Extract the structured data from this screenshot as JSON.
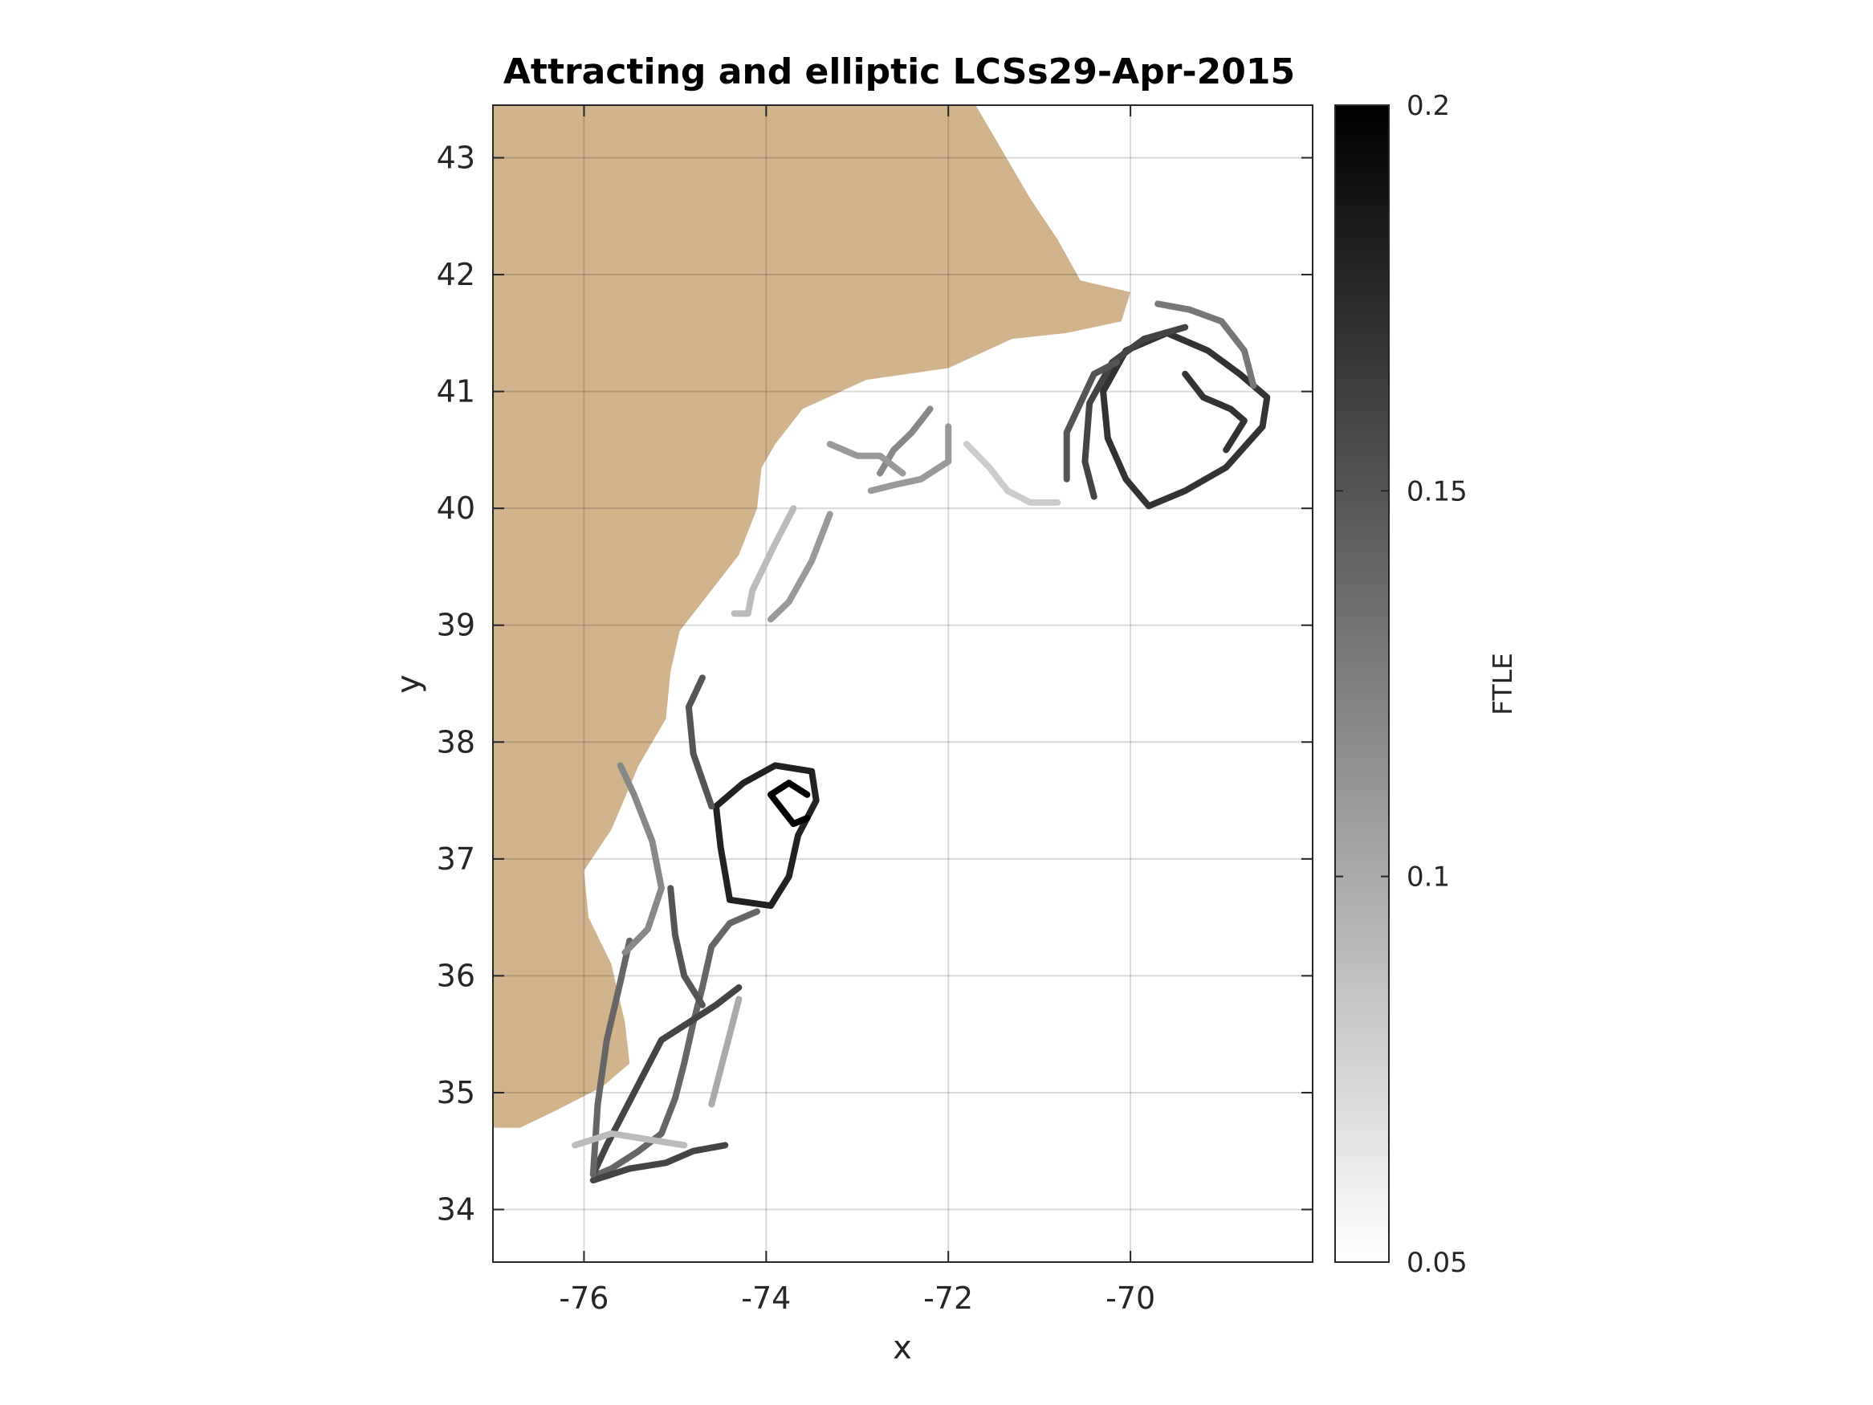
{
  "chart_data": {
    "type": "heatmap",
    "title": "Attracting and elliptic LCSs29-Apr-2015",
    "xlabel": "x",
    "ylabel": "y",
    "xlim": [
      -77.0,
      -68.0
    ],
    "ylim": [
      33.55,
      43.45
    ],
    "xticks": [
      -76,
      -74,
      -72,
      -70
    ],
    "xtick_labels": [
      "-76",
      "-74",
      "-72",
      "-70"
    ],
    "yticks": [
      34,
      35,
      36,
      37,
      38,
      39,
      40,
      41,
      42,
      43
    ],
    "ytick_labels": [
      "34",
      "35",
      "36",
      "37",
      "38",
      "39",
      "40",
      "41",
      "42",
      "43"
    ],
    "grid": true,
    "colorbar": {
      "label": "FTLE",
      "colormap": "gray-reversed",
      "clim": [
        0.05,
        0.2
      ],
      "ticks": [
        0.05,
        0.1,
        0.15,
        0.2
      ],
      "tick_labels": [
        "0.05",
        "0.1",
        "0.15",
        "0.2"
      ]
    },
    "land_color": "#d2b48c",
    "coastline": [
      [
        -77.0,
        43.45
      ],
      [
        -71.7,
        43.45
      ],
      [
        -71.1,
        42.65
      ],
      [
        -70.8,
        42.3
      ],
      [
        -70.55,
        41.95
      ],
      [
        -70.0,
        41.85
      ],
      [
        -70.1,
        41.6
      ],
      [
        -70.7,
        41.5
      ],
      [
        -71.3,
        41.45
      ],
      [
        -72.0,
        41.2
      ],
      [
        -72.9,
        41.1
      ],
      [
        -73.6,
        40.85
      ],
      [
        -73.9,
        40.55
      ],
      [
        -74.05,
        40.35
      ],
      [
        -74.1,
        40.0
      ],
      [
        -74.3,
        39.6
      ],
      [
        -74.6,
        39.3
      ],
      [
        -74.95,
        38.95
      ],
      [
        -75.05,
        38.6
      ],
      [
        -75.1,
        38.2
      ],
      [
        -75.4,
        37.8
      ],
      [
        -75.7,
        37.25
      ],
      [
        -76.0,
        36.9
      ],
      [
        -75.95,
        36.5
      ],
      [
        -75.7,
        36.1
      ],
      [
        -75.55,
        35.6
      ],
      [
        -75.5,
        35.25
      ],
      [
        -75.8,
        35.05
      ],
      [
        -76.3,
        34.85
      ],
      [
        -76.7,
        34.7
      ],
      [
        -77.0,
        34.7
      ]
    ],
    "series": [
      {
        "ftle": 0.17,
        "points": [
          [
            -69.8,
            40.02
          ],
          [
            -70.05,
            40.25
          ],
          [
            -70.25,
            40.6
          ],
          [
            -70.3,
            41.0
          ],
          [
            -70.05,
            41.35
          ],
          [
            -69.6,
            41.5
          ],
          [
            -69.15,
            41.35
          ],
          [
            -68.8,
            41.15
          ],
          [
            -68.5,
            40.95
          ],
          [
            -68.55,
            40.7
          ],
          [
            -68.95,
            40.35
          ],
          [
            -69.4,
            40.15
          ],
          [
            -69.8,
            40.02
          ]
        ]
      },
      {
        "ftle": 0.16,
        "points": [
          [
            -70.4,
            40.1
          ],
          [
            -70.5,
            40.4
          ],
          [
            -70.45,
            40.9
          ],
          [
            -70.2,
            41.25
          ],
          [
            -69.85,
            41.45
          ],
          [
            -69.4,
            41.55
          ]
        ]
      },
      {
        "ftle": 0.15,
        "points": [
          [
            -70.7,
            40.25
          ],
          [
            -70.7,
            40.65
          ],
          [
            -70.55,
            40.9
          ],
          [
            -70.4,
            41.15
          ],
          [
            -70.15,
            41.25
          ]
        ]
      },
      {
        "ftle": 0.17,
        "points": [
          [
            -69.4,
            41.15
          ],
          [
            -69.2,
            40.95
          ],
          [
            -68.9,
            40.85
          ],
          [
            -68.75,
            40.75
          ],
          [
            -68.95,
            40.5
          ]
        ]
      },
      {
        "ftle": 0.13,
        "points": [
          [
            -69.7,
            41.75
          ],
          [
            -69.35,
            41.7
          ],
          [
            -69.0,
            41.6
          ],
          [
            -68.75,
            41.35
          ],
          [
            -68.65,
            41.05
          ]
        ]
      },
      {
        "ftle": 0.12,
        "points": [
          [
            -72.2,
            40.85
          ],
          [
            -72.4,
            40.65
          ],
          [
            -72.6,
            40.5
          ],
          [
            -72.75,
            40.3
          ]
        ]
      },
      {
        "ftle": 0.11,
        "points": [
          [
            -72.0,
            40.7
          ],
          [
            -72.0,
            40.4
          ],
          [
            -72.3,
            40.25
          ],
          [
            -72.6,
            40.2
          ],
          [
            -72.85,
            40.15
          ]
        ]
      },
      {
        "ftle": 0.11,
        "points": [
          [
            -73.3,
            40.55
          ],
          [
            -73.0,
            40.45
          ],
          [
            -72.75,
            40.45
          ],
          [
            -72.5,
            40.3
          ]
        ]
      },
      {
        "ftle": 0.08,
        "points": [
          [
            -71.8,
            40.55
          ],
          [
            -71.55,
            40.35
          ],
          [
            -71.35,
            40.15
          ],
          [
            -71.1,
            40.05
          ],
          [
            -70.8,
            40.05
          ]
        ]
      },
      {
        "ftle": 0.09,
        "points": [
          [
            -73.7,
            40.0
          ],
          [
            -73.9,
            39.7
          ],
          [
            -74.15,
            39.3
          ],
          [
            -74.2,
            39.1
          ],
          [
            -74.35,
            39.1
          ]
        ]
      },
      {
        "ftle": 0.11,
        "points": [
          [
            -73.3,
            39.95
          ],
          [
            -73.5,
            39.55
          ],
          [
            -73.75,
            39.2
          ],
          [
            -73.95,
            39.05
          ]
        ]
      },
      {
        "ftle": 0.18,
        "points": [
          [
            -74.55,
            37.45
          ],
          [
            -74.5,
            37.1
          ],
          [
            -74.4,
            36.65
          ],
          [
            -73.95,
            36.6
          ],
          [
            -73.75,
            36.85
          ],
          [
            -73.65,
            37.2
          ],
          [
            -73.45,
            37.5
          ],
          [
            -73.5,
            37.75
          ],
          [
            -73.9,
            37.8
          ],
          [
            -74.25,
            37.65
          ],
          [
            -74.55,
            37.45
          ]
        ]
      },
      {
        "ftle": 0.2,
        "points": [
          [
            -73.55,
            37.35
          ],
          [
            -73.7,
            37.3
          ],
          [
            -73.95,
            37.55
          ],
          [
            -73.75,
            37.65
          ],
          [
            -73.55,
            37.55
          ]
        ]
      },
      {
        "ftle": 0.15,
        "points": [
          [
            -74.6,
            37.45
          ],
          [
            -74.8,
            37.9
          ],
          [
            -74.85,
            38.3
          ],
          [
            -74.7,
            38.55
          ]
        ]
      },
      {
        "ftle": 0.14,
        "points": [
          [
            -74.1,
            36.55
          ],
          [
            -74.4,
            36.45
          ],
          [
            -74.6,
            36.25
          ],
          [
            -74.7,
            35.9
          ],
          [
            -74.8,
            35.6
          ],
          [
            -74.9,
            35.25
          ],
          [
            -75.0,
            34.95
          ],
          [
            -75.15,
            34.65
          ],
          [
            -75.4,
            34.5
          ],
          [
            -75.7,
            34.35
          ],
          [
            -75.85,
            34.3
          ]
        ]
      },
      {
        "ftle": 0.16,
        "points": [
          [
            -74.3,
            35.9
          ],
          [
            -74.55,
            35.75
          ],
          [
            -74.85,
            35.6
          ],
          [
            -75.15,
            35.45
          ],
          [
            -75.35,
            35.15
          ],
          [
            -75.55,
            34.85
          ],
          [
            -75.75,
            34.55
          ],
          [
            -75.9,
            34.3
          ]
        ]
      },
      {
        "ftle": 0.16,
        "points": [
          [
            -75.9,
            34.25
          ],
          [
            -75.5,
            34.35
          ],
          [
            -75.1,
            34.4
          ],
          [
            -74.8,
            34.5
          ],
          [
            -74.45,
            34.55
          ]
        ]
      },
      {
        "ftle": 0.14,
        "points": [
          [
            -75.9,
            34.3
          ],
          [
            -75.85,
            34.9
          ],
          [
            -75.75,
            35.45
          ],
          [
            -75.6,
            35.95
          ],
          [
            -75.5,
            36.3
          ]
        ]
      },
      {
        "ftle": 0.12,
        "points": [
          [
            -75.55,
            36.2
          ],
          [
            -75.3,
            36.4
          ],
          [
            -75.15,
            36.75
          ],
          [
            -75.25,
            37.15
          ],
          [
            -75.45,
            37.55
          ],
          [
            -75.6,
            37.8
          ]
        ]
      },
      {
        "ftle": 0.15,
        "points": [
          [
            -75.05,
            36.75
          ],
          [
            -75.0,
            36.35
          ],
          [
            -74.9,
            36.0
          ],
          [
            -74.7,
            35.75
          ]
        ]
      },
      {
        "ftle": 0.1,
        "points": [
          [
            -74.6,
            34.9
          ],
          [
            -74.5,
            35.2
          ],
          [
            -74.4,
            35.5
          ],
          [
            -74.3,
            35.8
          ]
        ]
      },
      {
        "ftle": 0.09,
        "points": [
          [
            -76.1,
            34.55
          ],
          [
            -75.7,
            34.65
          ],
          [
            -75.3,
            34.6
          ],
          [
            -74.9,
            34.55
          ]
        ]
      }
    ]
  }
}
